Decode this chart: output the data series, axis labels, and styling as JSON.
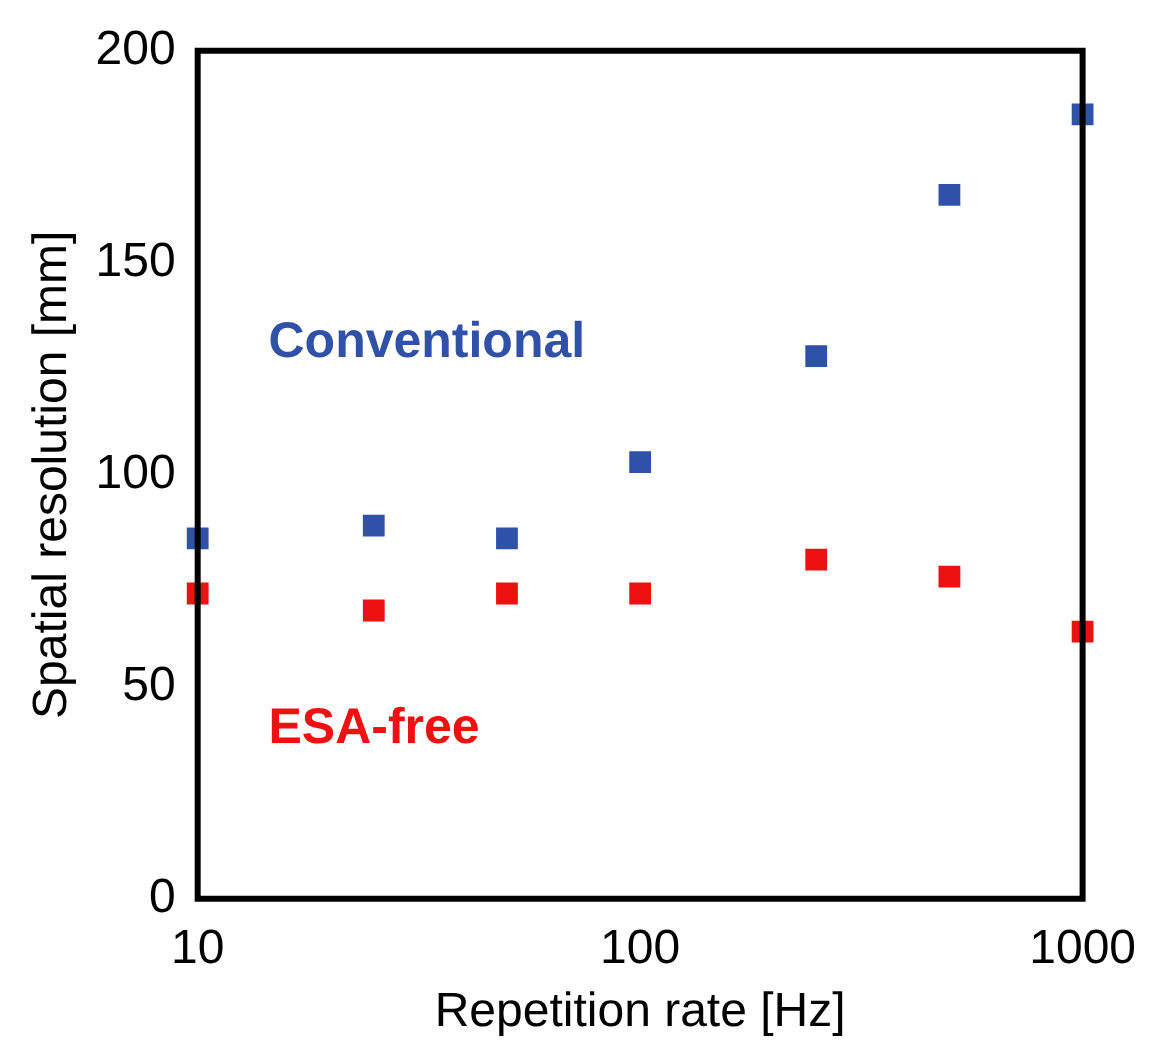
{
  "chart_data": {
    "type": "scatter",
    "xlabel": "Repetition rate [Hz]",
    "ylabel": "Spatial resolution [mm]",
    "x": [
      10,
      25,
      50,
      100,
      250,
      500,
      1000
    ],
    "log": "x",
    "xlim": [
      10,
      1000
    ],
    "xticks": [
      10,
      100,
      1000
    ],
    "ylim": [
      0,
      200
    ],
    "yticks": [
      0,
      50,
      100,
      150,
      200
    ],
    "grid": false,
    "legend": false,
    "marker": "square",
    "series": [
      {
        "name": "Conventional",
        "color": "#2f52a8",
        "values": [
          85,
          88,
          85,
          103,
          128,
          166,
          185
        ]
      },
      {
        "name": "ESA-free",
        "color": "#ee1111",
        "values": [
          72,
          68,
          72,
          72,
          80,
          76,
          63
        ]
      }
    ]
  }
}
